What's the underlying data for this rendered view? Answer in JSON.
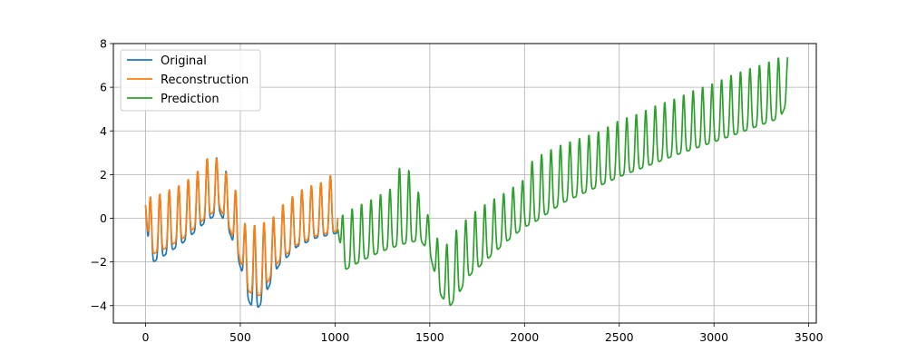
{
  "chart_data": {
    "type": "line",
    "title": "",
    "xlabel": "",
    "ylabel": "",
    "xlim": [
      -170,
      3540
    ],
    "ylim": [
      -4.8,
      8
    ],
    "xticks": [
      0,
      500,
      1000,
      1500,
      2000,
      2500,
      3000,
      3500
    ],
    "yticks": [
      -4,
      -2,
      0,
      2,
      4,
      6,
      8
    ],
    "grid": true,
    "legend": {
      "placement": "top-left",
      "entries": [
        "Original",
        "Reconstruction",
        "Prediction"
      ]
    },
    "series": [
      {
        "name": "Original",
        "color": "#1f77b4",
        "x_range": [
          0,
          1015
        ],
        "points": [
          [
            0,
            0.6
          ],
          [
            20,
            -2.1
          ],
          [
            100,
            -1.7
          ],
          [
            200,
            -1.1
          ],
          [
            300,
            -0.3
          ],
          [
            390,
            0.3
          ],
          [
            450,
            -0.8
          ],
          [
            510,
            -2.5
          ],
          [
            540,
            -3.7
          ],
          [
            575,
            -4.3
          ],
          [
            610,
            -3.9
          ],
          [
            700,
            -2.2
          ],
          [
            800,
            -1.3
          ],
          [
            900,
            -0.9
          ],
          [
            1000,
            -0.7
          ]
        ],
        "peaks": [
          [
            45,
            1.0
          ],
          [
            120,
            1.3
          ],
          [
            200,
            1.6
          ],
          [
            280,
            2.2
          ],
          [
            330,
            2.8
          ],
          [
            360,
            2.9
          ],
          [
            400,
            2.6
          ],
          [
            480,
            1.2
          ],
          [
            530,
            -0.4
          ],
          [
            620,
            -0.2
          ],
          [
            680,
            0.1
          ],
          [
            720,
            0.6
          ],
          [
            760,
            0.9
          ],
          [
            820,
            1.3
          ],
          [
            900,
            1.6
          ],
          [
            960,
            1.7
          ],
          [
            995,
            2.3
          ]
        ]
      },
      {
        "name": "Reconstruction",
        "color": "#ff7f0e",
        "x_range": [
          0,
          1015
        ],
        "points": [
          [
            0,
            0.6
          ],
          [
            20,
            -1.7
          ],
          [
            100,
            -1.4
          ],
          [
            200,
            -0.9
          ],
          [
            300,
            -0.1
          ],
          [
            390,
            0.5
          ],
          [
            450,
            -0.6
          ],
          [
            510,
            -2.2
          ],
          [
            540,
            -3.3
          ],
          [
            575,
            -3.6
          ],
          [
            610,
            -3.5
          ],
          [
            700,
            -2.0
          ],
          [
            800,
            -1.2
          ],
          [
            900,
            -0.8
          ],
          [
            1000,
            -0.6
          ]
        ],
        "peaks": [
          [
            45,
            1.0
          ],
          [
            120,
            1.3
          ],
          [
            200,
            1.6
          ],
          [
            280,
            2.2
          ],
          [
            330,
            2.8
          ],
          [
            360,
            2.9
          ],
          [
            400,
            2.5
          ],
          [
            480,
            1.2
          ],
          [
            530,
            -0.4
          ],
          [
            620,
            -0.2
          ],
          [
            680,
            0.1
          ],
          [
            720,
            0.6
          ],
          [
            760,
            0.9
          ],
          [
            820,
            1.3
          ],
          [
            900,
            1.6
          ],
          [
            960,
            1.7
          ],
          [
            995,
            2.3
          ]
        ]
      },
      {
        "name": "Prediction",
        "color": "#2ca02c",
        "x_range": [
          1015,
          3390
        ],
        "points": [
          [
            1015,
            -0.5
          ],
          [
            1045,
            -2.4
          ],
          [
            1150,
            -1.9
          ],
          [
            1250,
            -1.5
          ],
          [
            1350,
            -1.2
          ],
          [
            1450,
            -1.0
          ],
          [
            1500,
            -1.6
          ],
          [
            1550,
            -3.4
          ],
          [
            1600,
            -4.1
          ],
          [
            1650,
            -3.5
          ],
          [
            1700,
            -2.7
          ],
          [
            1800,
            -1.9
          ],
          [
            1900,
            -1.1
          ],
          [
            2000,
            -0.4
          ],
          [
            2050,
            -0.2
          ],
          [
            2200,
            0.7
          ],
          [
            2500,
            1.9
          ],
          [
            2800,
            2.9
          ],
          [
            3100,
            3.8
          ],
          [
            3350,
            4.6
          ],
          [
            3390,
            5.4
          ]
        ],
        "peaks": [
          [
            1030,
            0.1
          ],
          [
            1100,
            0.5
          ],
          [
            1200,
            0.9
          ],
          [
            1300,
            1.4
          ],
          [
            1330,
            2.3
          ],
          [
            1380,
            2.4
          ],
          [
            1430,
            1.4
          ],
          [
            1480,
            0.4
          ],
          [
            1530,
            -0.8
          ],
          [
            1580,
            -1.3
          ],
          [
            1650,
            -0.4
          ],
          [
            1720,
            0.2
          ],
          [
            1800,
            0.7
          ],
          [
            1900,
            1.2
          ],
          [
            2000,
            1.8
          ],
          [
            2020,
            2.5
          ],
          [
            2100,
            3.0
          ],
          [
            2200,
            3.4
          ],
          [
            2300,
            3.7
          ],
          [
            2400,
            4.0
          ],
          [
            2500,
            4.5
          ],
          [
            2600,
            4.8
          ],
          [
            2700,
            5.2
          ],
          [
            2800,
            5.5
          ],
          [
            2900,
            5.9
          ],
          [
            3000,
            6.2
          ],
          [
            3100,
            6.6
          ],
          [
            3200,
            6.9
          ],
          [
            3300,
            7.2
          ],
          [
            3350,
            7.4
          ]
        ]
      }
    ]
  }
}
